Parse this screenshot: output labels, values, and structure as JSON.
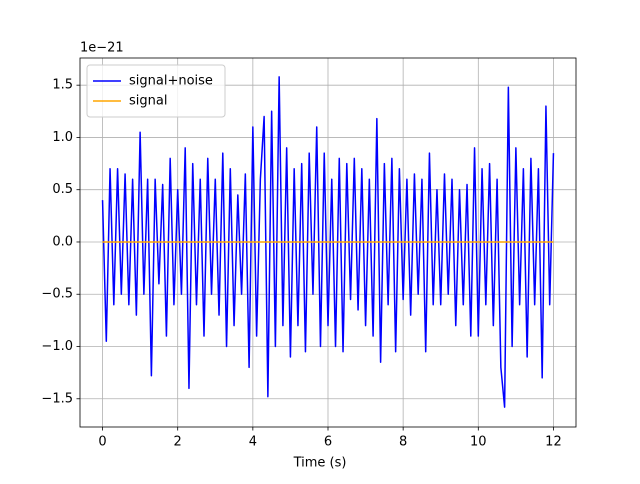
{
  "chart_data": {
    "type": "line",
    "xlabel": "Time (s)",
    "y_offset_label": "1e−21",
    "xlim": [
      -0.6,
      12.6
    ],
    "ylim": [
      -1.77,
      1.76
    ],
    "xticks": [
      0,
      2,
      4,
      6,
      8,
      10,
      12
    ],
    "yticks": [
      {
        "value": -1.5,
        "label": "−1.5"
      },
      {
        "value": -1.0,
        "label": "−1.0"
      },
      {
        "value": -0.5,
        "label": "−0.5"
      },
      {
        "value": 0.0,
        "label": "0.0"
      },
      {
        "value": 0.5,
        "label": "0.5"
      },
      {
        "value": 1.0,
        "label": "1.0"
      },
      {
        "value": 1.5,
        "label": "1.5"
      }
    ],
    "grid": true,
    "legend": "upper left",
    "series": [
      {
        "name": "signal+noise",
        "color": "#0000ff",
        "x": [
          0.0,
          0.1,
          0.2,
          0.3,
          0.4,
          0.5,
          0.6,
          0.7,
          0.8,
          0.9,
          1.0,
          1.1,
          1.2,
          1.3,
          1.4,
          1.5,
          1.6,
          1.7,
          1.8,
          1.9,
          2.0,
          2.1,
          2.2,
          2.3,
          2.4,
          2.5,
          2.6,
          2.7,
          2.8,
          2.9,
          3.0,
          3.1,
          3.2,
          3.3,
          3.4,
          3.5,
          3.6,
          3.7,
          3.8,
          3.9,
          4.0,
          4.1,
          4.2,
          4.3,
          4.4,
          4.5,
          4.6,
          4.7,
          4.8,
          4.9,
          5.0,
          5.1,
          5.2,
          5.3,
          5.4,
          5.5,
          5.6,
          5.7,
          5.8,
          5.9,
          6.0,
          6.1,
          6.2,
          6.3,
          6.4,
          6.5,
          6.6,
          6.7,
          6.8,
          6.9,
          7.0,
          7.1,
          7.2,
          7.3,
          7.4,
          7.5,
          7.6,
          7.7,
          7.8,
          7.9,
          8.0,
          8.1,
          8.2,
          8.3,
          8.4,
          8.5,
          8.6,
          8.7,
          8.8,
          8.9,
          9.0,
          9.1,
          9.2,
          9.3,
          9.4,
          9.5,
          9.6,
          9.7,
          9.8,
          9.9,
          10.0,
          10.1,
          10.2,
          10.3,
          10.4,
          10.5,
          10.6,
          10.7,
          10.8,
          10.9,
          11.0,
          11.1,
          11.2,
          11.3,
          11.4,
          11.5,
          11.6,
          11.7,
          11.8,
          11.9,
          12.0
        ],
        "values": [
          0.4,
          -0.95,
          0.7,
          -0.6,
          0.7,
          -0.5,
          0.65,
          -0.6,
          0.6,
          -0.7,
          1.05,
          -0.5,
          0.6,
          -1.28,
          0.6,
          -0.4,
          0.55,
          -0.9,
          0.8,
          -0.6,
          0.5,
          -0.5,
          0.9,
          -1.4,
          0.75,
          -0.6,
          0.6,
          -0.9,
          0.8,
          -0.5,
          0.6,
          -0.7,
          0.85,
          -1.0,
          0.7,
          -0.8,
          0.45,
          -0.5,
          0.65,
          -1.2,
          1.1,
          -0.9,
          0.6,
          1.2,
          -1.48,
          1.25,
          -1.0,
          1.58,
          -0.8,
          0.9,
          -1.1,
          0.7,
          -0.8,
          0.75,
          -1.05,
          0.85,
          -0.5,
          1.1,
          -1.0,
          0.85,
          -0.8,
          0.6,
          -1.0,
          0.8,
          -1.05,
          0.75,
          -0.55,
          0.8,
          -0.65,
          0.7,
          -0.8,
          0.6,
          -0.9,
          1.18,
          -1.15,
          0.75,
          -0.6,
          0.8,
          -1.05,
          0.7,
          -0.55,
          0.6,
          -0.7,
          0.65,
          -0.5,
          0.6,
          -1.05,
          0.85,
          -0.6,
          0.5,
          -0.6,
          0.65,
          -0.5,
          0.6,
          -0.8,
          0.5,
          -0.6,
          0.55,
          -0.9,
          0.9,
          -0.9,
          0.7,
          -0.6,
          0.75,
          -0.8,
          0.6,
          -1.2,
          -1.58,
          1.48,
          -1.0,
          0.9,
          -0.6,
          0.7,
          -1.1,
          0.8,
          -0.6,
          0.7,
          -1.3,
          1.3,
          -0.6,
          0.85
        ]
      },
      {
        "name": "signal",
        "color": "#ffa500",
        "x": [
          0.0,
          0.5,
          1.0,
          1.5,
          2.0,
          2.5,
          3.0,
          3.5,
          4.0,
          4.5,
          5.0,
          5.5,
          6.0,
          6.5,
          7.0,
          7.5,
          8.0,
          8.5,
          9.0,
          9.5,
          10.0,
          10.5,
          11.0,
          11.5,
          12.0
        ],
        "values": [
          0,
          0,
          0,
          0,
          0,
          0,
          0,
          0,
          0,
          0,
          0,
          0,
          0,
          0,
          0,
          0,
          0,
          0,
          0,
          0,
          0,
          0,
          0,
          0,
          0
        ]
      }
    ]
  }
}
